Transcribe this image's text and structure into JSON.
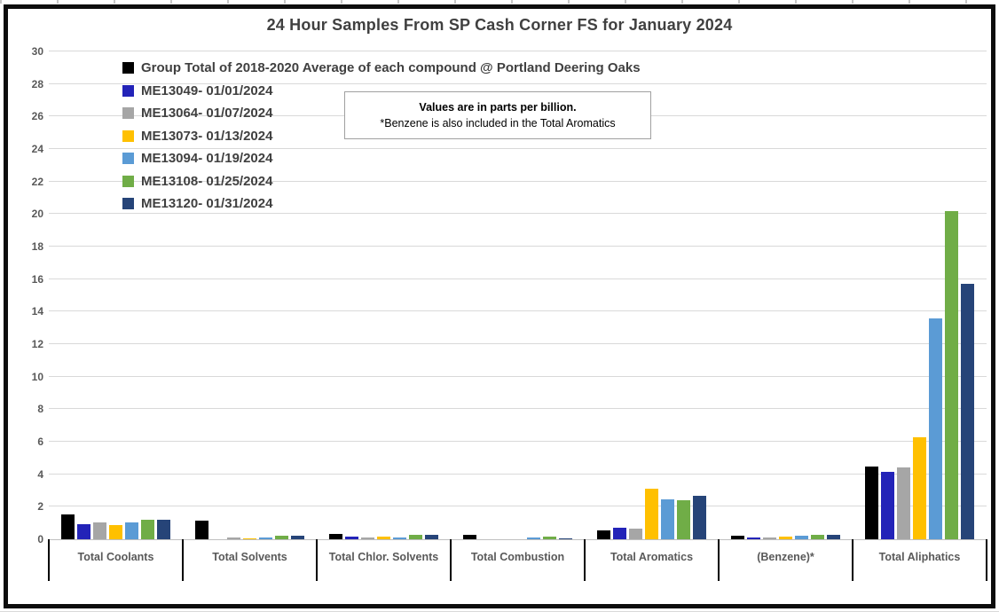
{
  "chart_data": {
    "type": "bar",
    "title": "24 Hour Samples From SP Cash Corner FS for January 2024",
    "annotation": {
      "line1": "Values are in parts per billion.",
      "line2": "*Benzene is also included in the Total Aromatics"
    },
    "units": "parts per billion",
    "categories": [
      "Total Coolants",
      "Total Solvents",
      "Total Chlor. Solvents",
      "Total Combustion",
      "Total Aromatics",
      "(Benzene)*",
      "Total Aliphatics"
    ],
    "series": [
      {
        "name": "Group Total of 2018-2020 Average of each compound @ Portland Deering Oaks",
        "color": "#000000",
        "values": [
          1.55,
          1.15,
          0.35,
          0.25,
          0.55,
          0.2,
          4.5
        ]
      },
      {
        "name": "ME13049- 01/01/2024",
        "color": "#2323B8",
        "values": [
          0.95,
          0,
          0.15,
          0,
          0.7,
          0.1,
          4.15
        ]
      },
      {
        "name": "ME13064- 01/07/2024",
        "color": "#A6A6A6",
        "values": [
          1.05,
          0.1,
          0.1,
          0,
          0.65,
          0.1,
          4.4
        ]
      },
      {
        "name": "ME13073- 01/13/2024",
        "color": "#FFC000",
        "values": [
          0.9,
          0.07,
          0.15,
          0,
          3.1,
          0.15,
          6.3
        ]
      },
      {
        "name": "ME13094- 01/19/2024",
        "color": "#5B9BD5",
        "values": [
          1.05,
          0.12,
          0.12,
          0.1,
          2.45,
          0.2,
          13.6
        ]
      },
      {
        "name": "ME13108- 01/25/2024",
        "color": "#70AD47",
        "values": [
          1.2,
          0.2,
          0.25,
          0.15,
          2.4,
          0.3,
          20.2
        ]
      },
      {
        "name": "ME13120- 01/31/2024",
        "color": "#264478",
        "values": [
          1.2,
          0.2,
          0.25,
          0.08,
          2.7,
          0.25,
          15.7
        ]
      }
    ],
    "ylim": [
      0,
      30
    ],
    "ytick_step": 2,
    "xlabel": "",
    "ylabel": "",
    "grid": true,
    "legend_position": "top-left-inside"
  },
  "colors": {
    "title_text": "#404040",
    "axis_text": "#595959",
    "gridline": "#D9D9D9",
    "frame_border": "#0D0D0D"
  }
}
